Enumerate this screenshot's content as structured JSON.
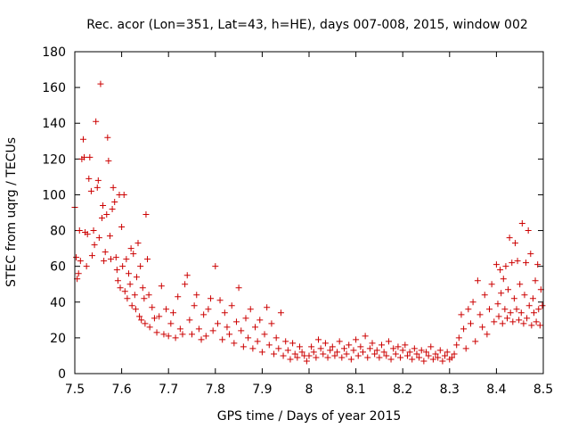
{
  "chart_data": {
    "type": "scatter",
    "title": "Rec. acor (Lon=351, Lat=43, h=HE), days 007-008, 2015, window 002",
    "xlabel": "GPS time / Days of year 2015",
    "ylabel": "STEC from uqrg / TECUs",
    "xlim": [
      7.5,
      8.5
    ],
    "ylim": [
      0,
      180
    ],
    "xticks": [
      "7.5",
      "7.6",
      "7.7",
      "7.8",
      "7.9",
      "8",
      "8.1",
      "8.2",
      "8.3",
      "8.4",
      "8.5"
    ],
    "yticks": [
      "0",
      "20",
      "40",
      "60",
      "80",
      "100",
      "120",
      "140",
      "160",
      "180"
    ],
    "grid": false,
    "legend": "none",
    "marker": "+",
    "color": "#cc0000",
    "points": [
      [
        7.5,
        93
      ],
      [
        7.503,
        65
      ],
      [
        7.505,
        53
      ],
      [
        7.508,
        56
      ],
      [
        7.51,
        80
      ],
      [
        7.512,
        63
      ],
      [
        7.515,
        120
      ],
      [
        7.518,
        131
      ],
      [
        7.52,
        121
      ],
      [
        7.522,
        79
      ],
      [
        7.525,
        60
      ],
      [
        7.527,
        78
      ],
      [
        7.53,
        109
      ],
      [
        7.532,
        121
      ],
      [
        7.535,
        102
      ],
      [
        7.537,
        66
      ],
      [
        7.54,
        80
      ],
      [
        7.542,
        72
      ],
      [
        7.545,
        141
      ],
      [
        7.548,
        104
      ],
      [
        7.55,
        108
      ],
      [
        7.552,
        76
      ],
      [
        7.555,
        162
      ],
      [
        7.558,
        87
      ],
      [
        7.56,
        94
      ],
      [
        7.562,
        63
      ],
      [
        7.565,
        68
      ],
      [
        7.568,
        89
      ],
      [
        7.57,
        132
      ],
      [
        7.572,
        119
      ],
      [
        7.575,
        77
      ],
      [
        7.577,
        64
      ],
      [
        7.58,
        92
      ],
      [
        7.582,
        104
      ],
      [
        7.585,
        96
      ],
      [
        7.588,
        65
      ],
      [
        7.59,
        58
      ],
      [
        7.592,
        52
      ],
      [
        7.595,
        100
      ],
      [
        7.597,
        48
      ],
      [
        7.6,
        82
      ],
      [
        7.602,
        60
      ],
      [
        7.605,
        100
      ],
      [
        7.607,
        46
      ],
      [
        7.61,
        64
      ],
      [
        7.612,
        42
      ],
      [
        7.615,
        56
      ],
      [
        7.618,
        50
      ],
      [
        7.62,
        70
      ],
      [
        7.622,
        38
      ],
      [
        7.625,
        67
      ],
      [
        7.628,
        44
      ],
      [
        7.63,
        36
      ],
      [
        7.632,
        54
      ],
      [
        7.635,
        73
      ],
      [
        7.638,
        32
      ],
      [
        7.64,
        60
      ],
      [
        7.642,
        30
      ],
      [
        7.645,
        48
      ],
      [
        7.648,
        42
      ],
      [
        7.65,
        28
      ],
      [
        7.652,
        89
      ],
      [
        7.655,
        64
      ],
      [
        7.658,
        44
      ],
      [
        7.66,
        26
      ],
      [
        7.665,
        37
      ],
      [
        7.67,
        31
      ],
      [
        7.675,
        23
      ],
      [
        7.68,
        32
      ],
      [
        7.685,
        49
      ],
      [
        7.69,
        22
      ],
      [
        7.695,
        36
      ],
      [
        7.7,
        21
      ],
      [
        7.705,
        28
      ],
      [
        7.71,
        34
      ],
      [
        7.715,
        20
      ],
      [
        7.72,
        43
      ],
      [
        7.725,
        25
      ],
      [
        7.73,
        22
      ],
      [
        7.735,
        50
      ],
      [
        7.74,
        55
      ],
      [
        7.745,
        30
      ],
      [
        7.75,
        22
      ],
      [
        7.755,
        38
      ],
      [
        7.76,
        44
      ],
      [
        7.765,
        25
      ],
      [
        7.77,
        19
      ],
      [
        7.775,
        33
      ],
      [
        7.78,
        21
      ],
      [
        7.785,
        36
      ],
      [
        7.79,
        42
      ],
      [
        7.795,
        24
      ],
      [
        7.8,
        60
      ],
      [
        7.805,
        28
      ],
      [
        7.81,
        41
      ],
      [
        7.815,
        19
      ],
      [
        7.82,
        34
      ],
      [
        7.825,
        26
      ],
      [
        7.83,
        22
      ],
      [
        7.835,
        38
      ],
      [
        7.84,
        17
      ],
      [
        7.845,
        29
      ],
      [
        7.85,
        48
      ],
      [
        7.855,
        24
      ],
      [
        7.86,
        15
      ],
      [
        7.865,
        31
      ],
      [
        7.87,
        20
      ],
      [
        7.875,
        36
      ],
      [
        7.88,
        14
      ],
      [
        7.885,
        26
      ],
      [
        7.89,
        18
      ],
      [
        7.895,
        30
      ],
      [
        7.9,
        12
      ],
      [
        7.905,
        22
      ],
      [
        7.91,
        37
      ],
      [
        7.915,
        16
      ],
      [
        7.92,
        28
      ],
      [
        7.925,
        11
      ],
      [
        7.93,
        20
      ],
      [
        7.935,
        14
      ],
      [
        7.94,
        34
      ],
      [
        7.945,
        10
      ],
      [
        7.95,
        18
      ],
      [
        7.955,
        13
      ],
      [
        7.96,
        8
      ],
      [
        7.965,
        17
      ],
      [
        7.97,
        11
      ],
      [
        7.975,
        9
      ],
      [
        7.98,
        15
      ],
      [
        7.985,
        12
      ],
      [
        7.99,
        10
      ],
      [
        7.995,
        7
      ],
      [
        8.0,
        10
      ],
      [
        8.005,
        15
      ],
      [
        8.01,
        12
      ],
      [
        8.015,
        9
      ],
      [
        8.02,
        19
      ],
      [
        8.025,
        14
      ],
      [
        8.03,
        11
      ],
      [
        8.035,
        17
      ],
      [
        8.04,
        9
      ],
      [
        8.045,
        13
      ],
      [
        8.05,
        15
      ],
      [
        8.055,
        10
      ],
      [
        8.06,
        12
      ],
      [
        8.065,
        18
      ],
      [
        8.07,
        9
      ],
      [
        8.075,
        14
      ],
      [
        8.08,
        11
      ],
      [
        8.085,
        16
      ],
      [
        8.09,
        8
      ],
      [
        8.095,
        13
      ],
      [
        8.1,
        19
      ],
      [
        8.105,
        10
      ],
      [
        8.11,
        15
      ],
      [
        8.115,
        12
      ],
      [
        8.12,
        21
      ],
      [
        8.125,
        9
      ],
      [
        8.13,
        14
      ],
      [
        8.135,
        17
      ],
      [
        8.14,
        11
      ],
      [
        8.145,
        13
      ],
      [
        8.15,
        9
      ],
      [
        8.155,
        16
      ],
      [
        8.16,
        12
      ],
      [
        8.165,
        10
      ],
      [
        8.17,
        18
      ],
      [
        8.175,
        8
      ],
      [
        8.18,
        14
      ],
      [
        8.185,
        11
      ],
      [
        8.19,
        15
      ],
      [
        8.195,
        9
      ],
      [
        8.2,
        13
      ],
      [
        8.205,
        16
      ],
      [
        8.21,
        10
      ],
      [
        8.215,
        12
      ],
      [
        8.22,
        8
      ],
      [
        8.225,
        14
      ],
      [
        8.23,
        11
      ],
      [
        8.235,
        9
      ],
      [
        8.24,
        13
      ],
      [
        8.245,
        7
      ],
      [
        8.25,
        12
      ],
      [
        8.255,
        10
      ],
      [
        8.26,
        15
      ],
      [
        8.265,
        8
      ],
      [
        8.27,
        11
      ],
      [
        8.275,
        9
      ],
      [
        8.28,
        13
      ],
      [
        8.285,
        7
      ],
      [
        8.29,
        10
      ],
      [
        8.295,
        12
      ],
      [
        8.3,
        8
      ],
      [
        8.305,
        9
      ],
      [
        8.31,
        11
      ],
      [
        8.315,
        16
      ],
      [
        8.32,
        20
      ],
      [
        8.325,
        33
      ],
      [
        8.33,
        25
      ],
      [
        8.335,
        14
      ],
      [
        8.34,
        36
      ],
      [
        8.345,
        28
      ],
      [
        8.35,
        40
      ],
      [
        8.355,
        18
      ],
      [
        8.36,
        52
      ],
      [
        8.365,
        33
      ],
      [
        8.37,
        26
      ],
      [
        8.375,
        44
      ],
      [
        8.38,
        22
      ],
      [
        8.385,
        36
      ],
      [
        8.39,
        50
      ],
      [
        8.395,
        29
      ],
      [
        8.4,
        61
      ],
      [
        8.403,
        39
      ],
      [
        8.405,
        32
      ],
      [
        8.408,
        58
      ],
      [
        8.41,
        45
      ],
      [
        8.413,
        28
      ],
      [
        8.415,
        53
      ],
      [
        8.418,
        36
      ],
      [
        8.42,
        60
      ],
      [
        8.423,
        31
      ],
      [
        8.425,
        47
      ],
      [
        8.428,
        76
      ],
      [
        8.43,
        34
      ],
      [
        8.433,
        62
      ],
      [
        8.435,
        29
      ],
      [
        8.438,
        42
      ],
      [
        8.44,
        73
      ],
      [
        8.443,
        36
      ],
      [
        8.445,
        63
      ],
      [
        8.448,
        30
      ],
      [
        8.45,
        50
      ],
      [
        8.453,
        34
      ],
      [
        8.455,
        84
      ],
      [
        8.458,
        28
      ],
      [
        8.46,
        44
      ],
      [
        8.463,
        62
      ],
      [
        8.465,
        31
      ],
      [
        8.468,
        80
      ],
      [
        8.47,
        38
      ],
      [
        8.473,
        67
      ],
      [
        8.475,
        27
      ],
      [
        8.478,
        42
      ],
      [
        8.48,
        34
      ],
      [
        8.483,
        52
      ],
      [
        8.485,
        29
      ],
      [
        8.488,
        61
      ],
      [
        8.49,
        36
      ],
      [
        8.493,
        27
      ],
      [
        8.495,
        47
      ],
      [
        8.498,
        38
      ]
    ]
  }
}
